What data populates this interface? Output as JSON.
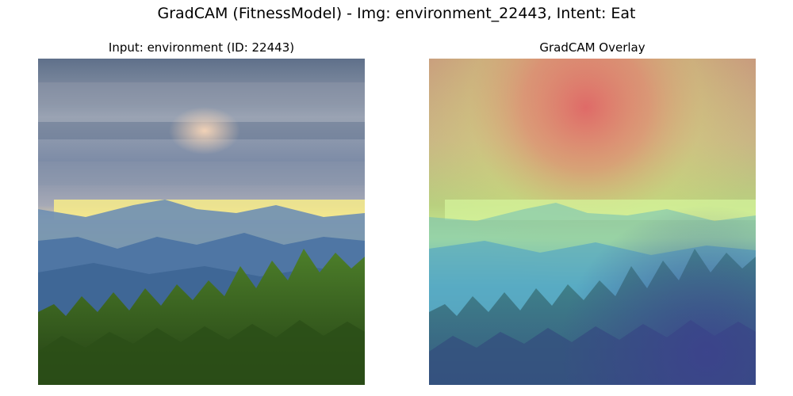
{
  "figure": {
    "suptitle": "GradCAM (FitnessModel) - Img: environment_22443, Intent: Eat"
  },
  "panels": [
    {
      "title": "Input: environment (ID: 22443)",
      "content": "landscape photo: cloudy sky, sunlit horizon band, blue mountain ridges, green conifer forest"
    },
    {
      "title": "GradCAM Overlay",
      "content": "same photo with jet-colormap heatmap; hottest (red) region at top-center, cool (blue) at bottom and right"
    }
  ],
  "colors": {
    "sky_top": "#6f7f95",
    "sky_mid": "#8795ae",
    "horizon_glow": "#f2e27a",
    "mountain": "#4f7aa8",
    "mountain_far": "#6b8fb6",
    "forest": "#2f5a1e",
    "forest_light": "#5d8f2f",
    "heat_red": "#e06a5a",
    "heat_yellow": "#d8e07a",
    "heat_green": "#7fd08a",
    "heat_blue": "#4a5fb0"
  }
}
